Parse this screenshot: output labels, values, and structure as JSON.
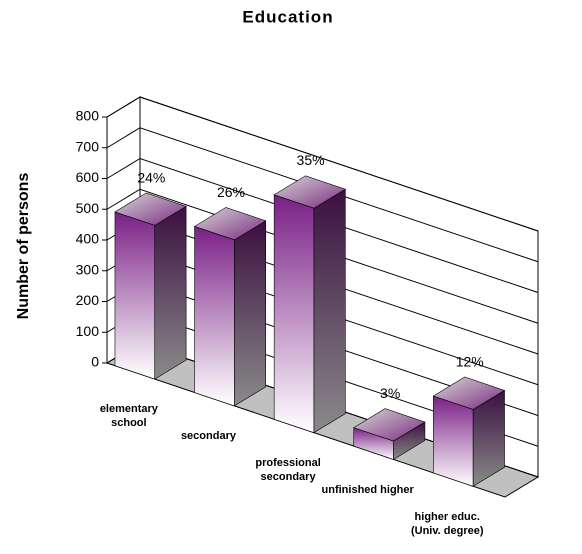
{
  "chart_data": {
    "type": "bar3d",
    "title": "Education",
    "y_label": "Number of persons",
    "categories": [
      "elementary school",
      "secondary",
      "professional secondary",
      "unfinished higher",
      "higher educ. (Univ. degree)"
    ],
    "values": [
      500,
      540,
      730,
      60,
      250
    ],
    "percent_labels": [
      "24%",
      "26%",
      "35%",
      "3%",
      "12%"
    ],
    "color": "#7a1f86",
    "ylim": [
      0,
      800
    ],
    "yticks": [
      0,
      100,
      200,
      300,
      400,
      500,
      600,
      700,
      800
    ],
    "grid": true
  }
}
